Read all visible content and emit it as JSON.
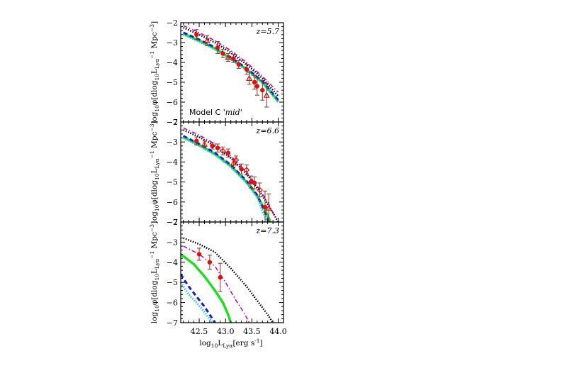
{
  "chart_data": [
    {
      "type": "line",
      "panel_label": "z=5.7",
      "annotation": "Model C ",
      "annotation_em": "'mid'",
      "ylabel": "log10φ[dlog10LLyα-1 Mpc-3]",
      "ylim": [
        -7,
        -2
      ],
      "xlim": [
        42.15,
        44.1
      ],
      "yticks": [
        "-2",
        "-3",
        "-4",
        "-5",
        "-6",
        "-7"
      ],
      "colors": {
        "black": "#000000",
        "magenta": "#c000c0",
        "green": "#22dd22",
        "blue": "#1a1acc",
        "cyan": "#22cccc",
        "red": "#dd1111"
      },
      "series": [
        {
          "color": "black",
          "style": "dotted",
          "x": [
            42.2,
            42.5,
            42.8,
            43.1,
            43.4,
            43.7,
            44.0
          ],
          "y": [
            -2.25,
            -2.6,
            -3.0,
            -3.5,
            -4.1,
            -4.8,
            -5.7
          ]
        },
        {
          "color": "magenta",
          "style": "dashdot",
          "x": [
            42.2,
            42.5,
            42.8,
            43.1,
            43.4,
            43.7,
            44.0
          ],
          "y": [
            -2.15,
            -2.5,
            -2.9,
            -3.4,
            -4.0,
            -4.7,
            -5.5
          ]
        },
        {
          "color": "green",
          "style": "solid",
          "x": [
            42.2,
            42.5,
            42.8,
            43.1,
            43.4,
            43.7,
            44.0
          ],
          "y": [
            -2.55,
            -2.9,
            -3.3,
            -3.8,
            -4.35,
            -5.0,
            -5.95
          ]
        },
        {
          "color": "blue",
          "style": "dashed",
          "x": [
            42.2,
            42.5,
            42.8,
            43.1,
            43.4,
            43.7,
            44.0
          ],
          "y": [
            -2.5,
            -2.85,
            -3.25,
            -3.75,
            -4.3,
            -4.95,
            -5.9
          ]
        },
        {
          "color": "cyan",
          "style": "dotted",
          "x": [
            42.2,
            42.5,
            42.8,
            43.1,
            43.4,
            43.7,
            44.0
          ],
          "y": [
            -2.6,
            -2.95,
            -3.35,
            -3.85,
            -4.4,
            -5.05,
            -6.0
          ]
        }
      ],
      "points": [
        {
          "x": 42.45,
          "y": -2.6,
          "err": 0.25,
          "marker": "circle"
        },
        {
          "x": 42.65,
          "y": -2.9,
          "err": 0.25,
          "marker": "triangle"
        },
        {
          "x": 42.85,
          "y": -3.25,
          "err": 0.3,
          "marker": "circle"
        },
        {
          "x": 42.95,
          "y": -3.55,
          "err": 0.2,
          "marker": "circle"
        },
        {
          "x": 43.05,
          "y": -3.75,
          "err": 0.2,
          "marker": "triangle"
        },
        {
          "x": 43.15,
          "y": -3.8,
          "err": 0.2,
          "marker": "circle"
        },
        {
          "x": 43.25,
          "y": -4.1,
          "err": 0.2,
          "marker": "circle"
        },
        {
          "x": 43.4,
          "y": -4.35,
          "err": 0.25,
          "marker": "circle"
        },
        {
          "x": 43.45,
          "y": -4.8,
          "err": 0.3,
          "marker": "triangle"
        },
        {
          "x": 43.55,
          "y": -5.0,
          "err": 0.35,
          "marker": "circle"
        },
        {
          "x": 43.6,
          "y": -5.2,
          "err": 0.45,
          "marker": "circle"
        },
        {
          "x": 43.7,
          "y": -5.4,
          "err": 0.5,
          "marker": "circle"
        },
        {
          "x": 43.78,
          "y": -5.65,
          "err": 0.6,
          "marker": "triangle"
        }
      ]
    },
    {
      "type": "line",
      "panel_label": "z=6.6",
      "ylabel": "log10φ[dlog10LLyα-1 Mpc-3]",
      "ylim": [
        -7,
        -2
      ],
      "xlim": [
        42.15,
        44.1
      ],
      "yticks": [
        "-2",
        "-3",
        "-4",
        "-5",
        "-6",
        "-7"
      ],
      "series": [
        {
          "color": "black",
          "style": "dotted",
          "x": [
            42.2,
            42.5,
            42.8,
            43.1,
            43.4,
            43.6,
            43.8,
            44.0
          ],
          "y": [
            -2.4,
            -2.75,
            -3.2,
            -3.8,
            -4.6,
            -5.3,
            -6.1,
            -7.0
          ]
        },
        {
          "color": "magenta",
          "style": "dashdot",
          "x": [
            42.2,
            42.5,
            42.8,
            43.1,
            43.4,
            43.6,
            43.8,
            43.95
          ],
          "y": [
            -2.3,
            -2.65,
            -3.1,
            -3.7,
            -4.5,
            -5.2,
            -6.0,
            -6.8
          ]
        },
        {
          "color": "green",
          "style": "solid",
          "x": [
            42.2,
            42.5,
            42.8,
            43.1,
            43.4,
            43.6,
            43.75,
            43.85
          ],
          "y": [
            -2.75,
            -3.15,
            -3.6,
            -4.2,
            -5.0,
            -5.7,
            -6.4,
            -7.0
          ]
        },
        {
          "color": "blue",
          "style": "dashed",
          "x": [
            42.2,
            42.5,
            42.8,
            43.1,
            43.4,
            43.6,
            43.72,
            43.82
          ],
          "y": [
            -2.7,
            -3.1,
            -3.55,
            -4.15,
            -4.95,
            -5.65,
            -6.35,
            -7.0
          ]
        },
        {
          "color": "cyan",
          "style": "dotted",
          "x": [
            42.2,
            42.5,
            42.8,
            43.1,
            43.4,
            43.6,
            43.7,
            43.8
          ],
          "y": [
            -2.8,
            -3.2,
            -3.65,
            -4.25,
            -5.05,
            -5.75,
            -6.45,
            -7.0
          ]
        }
      ],
      "points": [
        {
          "x": 42.45,
          "y": -2.95,
          "err": 0.2,
          "marker": "circle"
        },
        {
          "x": 42.6,
          "y": -3.1,
          "err": 0.15,
          "marker": "triangle"
        },
        {
          "x": 42.75,
          "y": -3.2,
          "err": 0.15,
          "marker": "circle"
        },
        {
          "x": 42.85,
          "y": -3.3,
          "err": 0.2,
          "marker": "circle"
        },
        {
          "x": 42.95,
          "y": -3.45,
          "err": 0.2,
          "marker": "diamond"
        },
        {
          "x": 43.05,
          "y": -3.55,
          "err": 0.2,
          "marker": "circle"
        },
        {
          "x": 43.15,
          "y": -4.05,
          "err": 0.2,
          "marker": "triangle"
        },
        {
          "x": 43.2,
          "y": -3.9,
          "err": 0.2,
          "marker": "diamond"
        },
        {
          "x": 43.3,
          "y": -4.35,
          "err": 0.25,
          "marker": "circle"
        },
        {
          "x": 43.4,
          "y": -4.4,
          "err": 0.25,
          "marker": "diamond"
        },
        {
          "x": 43.48,
          "y": -5.0,
          "err": 0.3,
          "marker": "circle"
        },
        {
          "x": 43.55,
          "y": -5.05,
          "err": 0.3,
          "marker": "circle"
        },
        {
          "x": 43.65,
          "y": -5.4,
          "err": 0.35,
          "marker": "diamond"
        },
        {
          "x": 43.75,
          "y": -6.25,
          "err": 0.8,
          "marker": "circle"
        },
        {
          "x": 43.82,
          "y": -6.3,
          "err": 0.7,
          "marker": "triangle"
        }
      ]
    },
    {
      "type": "line",
      "panel_label": "z=7.3",
      "ylabel": "log10φ[dlog10LLyα-1 Mpc-3]",
      "xlabel": "log10LLyα[erg s-1]",
      "ylim": [
        -7,
        -2
      ],
      "xlim": [
        42.15,
        44.1
      ],
      "yticks": [
        "-2",
        "-3",
        "-4",
        "-5",
        "-6",
        "-7"
      ],
      "xticks": [
        "42.5",
        "43.0",
        "43.5",
        "44.0"
      ],
      "series": [
        {
          "color": "black",
          "style": "dotted",
          "x": [
            42.2,
            42.5,
            42.8,
            43.1,
            43.4,
            43.6,
            43.8,
            43.9
          ],
          "y": [
            -2.8,
            -3.1,
            -3.5,
            -4.3,
            -5.2,
            -5.9,
            -6.6,
            -7.0
          ]
        },
        {
          "color": "magenta",
          "style": "dashdot",
          "x": [
            42.2,
            42.5,
            42.8,
            43.0,
            43.2,
            43.35,
            43.45
          ],
          "y": [
            -3.2,
            -3.6,
            -4.2,
            -5.0,
            -5.9,
            -6.5,
            -7.0
          ]
        },
        {
          "color": "green",
          "style": "solid",
          "x": [
            42.15,
            42.4,
            42.6,
            42.8,
            42.95,
            43.05,
            43.1
          ],
          "y": [
            -3.6,
            -4.1,
            -4.7,
            -5.4,
            -6.0,
            -6.6,
            -7.0
          ]
        },
        {
          "color": "blue",
          "style": "dashed",
          "x": [
            42.15,
            42.3,
            42.45,
            42.6,
            42.7,
            42.8
          ],
          "y": [
            -4.6,
            -5.2,
            -5.7,
            -6.2,
            -6.6,
            -7.0
          ]
        },
        {
          "color": "cyan",
          "style": "dotted",
          "x": [
            42.15,
            42.3,
            42.45,
            42.58,
            42.68,
            42.75
          ],
          "y": [
            -5.0,
            -5.6,
            -6.0,
            -6.4,
            -6.75,
            -7.0
          ]
        }
      ],
      "points": [
        {
          "x": 42.5,
          "y": -3.6,
          "err": 0.3,
          "marker": "circle"
        },
        {
          "x": 42.7,
          "y": -4.0,
          "err": 0.35,
          "marker": "circle"
        },
        {
          "x": 42.9,
          "y": -4.75,
          "err": 0.7,
          "marker": "circle"
        }
      ]
    }
  ]
}
